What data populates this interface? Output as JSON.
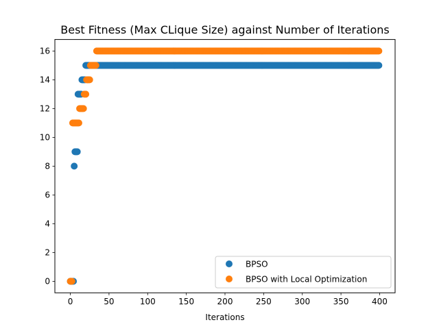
{
  "chart_data": {
    "type": "scatter",
    "title": "Best Fitness (Max CLique Size) against Number of Iterations",
    "xlabel": "Iterations",
    "ylabel": "",
    "xlim": [
      -20,
      420
    ],
    "ylim": [
      -0.8,
      16.8
    ],
    "xticks": [
      0,
      50,
      100,
      150,
      200,
      250,
      300,
      350,
      400
    ],
    "yticks": [
      0,
      2,
      4,
      6,
      8,
      10,
      12,
      14,
      16
    ],
    "grid": false,
    "legend_position": "lower-right",
    "series": [
      {
        "name": "BPSO",
        "color": "#1f77b4",
        "segments": [
          {
            "x_start": 0,
            "x_end": 4,
            "y": 0
          },
          {
            "x_start": 5,
            "x_end": 5,
            "y": 8
          },
          {
            "x_start": 6,
            "x_end": 9,
            "y": 9
          },
          {
            "x_start": 10,
            "x_end": 14,
            "y": 13
          },
          {
            "x_start": 15,
            "x_end": 19,
            "y": 14
          },
          {
            "x_start": 20,
            "x_end": 399,
            "y": 15
          }
        ]
      },
      {
        "name": "BPSO with Local Optimization",
        "color": "#ff7f0e",
        "segments": [
          {
            "x_start": 0,
            "x_end": 2,
            "y": 0
          },
          {
            "x_start": 3,
            "x_end": 11,
            "y": 11
          },
          {
            "x_start": 12,
            "x_end": 17,
            "y": 12
          },
          {
            "x_start": 18,
            "x_end": 20,
            "y": 13
          },
          {
            "x_start": 21,
            "x_end": 25,
            "y": 14
          },
          {
            "x_start": 26,
            "x_end": 33,
            "y": 15
          },
          {
            "x_start": 34,
            "x_end": 399,
            "y": 16
          }
        ]
      }
    ]
  }
}
